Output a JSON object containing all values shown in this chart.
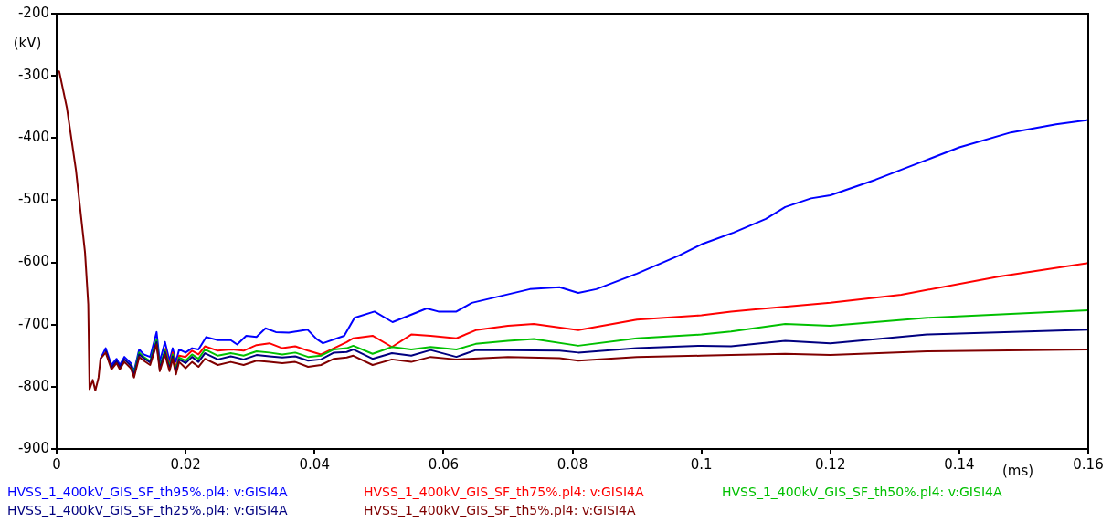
{
  "chart_data": {
    "type": "line",
    "xlabel": "(ms)",
    "ylabel": "(kV)",
    "xlim": [
      0,
      0.16
    ],
    "xticks": [
      0,
      0.02,
      0.04,
      0.06,
      0.08,
      0.1,
      0.12,
      0.14,
      0.16
    ],
    "ylim": [
      -900,
      -200
    ],
    "yticks": [
      -900,
      -800,
      -700,
      -600,
      -500,
      -400,
      -300,
      -200
    ],
    "grid": false,
    "legend": "bottom",
    "marker": "none",
    "line_style": "solid",
    "series": [
      {
        "name": "HVSS_1_400kV_GIS_SF_th95%.pl4: v:GISI4A",
        "color": "#0000ff",
        "x": [
          0.0068,
          0.0076,
          0.0085,
          0.0093,
          0.0098,
          0.0105,
          0.0115,
          0.012,
          0.0128,
          0.0135,
          0.0145,
          0.0155,
          0.016,
          0.0168,
          0.0175,
          0.018,
          0.0185,
          0.019,
          0.02,
          0.021,
          0.022,
          0.0232,
          0.025,
          0.027,
          0.028,
          0.0294,
          0.031,
          0.0324,
          0.034,
          0.036,
          0.0389,
          0.0403,
          0.0413,
          0.0446,
          0.0462,
          0.0493,
          0.0521,
          0.0574,
          0.0592,
          0.062,
          0.0644,
          0.0734,
          0.078,
          0.0809,
          0.0837,
          0.09,
          0.0965,
          0.1,
          0.105,
          0.11,
          0.113,
          0.117,
          0.12,
          0.127,
          0.135,
          0.14,
          0.148,
          0.155,
          0.16
        ],
        "values": [
          -755,
          -738,
          -765,
          -755,
          -765,
          -752,
          -762,
          -775,
          -740,
          -748,
          -752,
          -712,
          -760,
          -728,
          -758,
          -738,
          -760,
          -740,
          -745,
          -738,
          -740,
          -720,
          -725,
          -725,
          -732,
          -718,
          -720,
          -706,
          -712,
          -713,
          -708,
          -723,
          -730,
          -718,
          -689,
          -679,
          -696,
          -674,
          -679,
          -679,
          -665,
          -643,
          -640,
          -649,
          -643,
          -618,
          -589,
          -571,
          -552,
          -530,
          -511,
          -497,
          -492,
          -467,
          -435,
          -415,
          -391,
          -378,
          -371
        ]
      },
      {
        "name": "HVSS_1_400kV_GIS_SF_th75%.pl4: v:GISI4A",
        "color": "#ff0000",
        "x": [
          0.0168,
          0.0175,
          0.018,
          0.0185,
          0.019,
          0.02,
          0.021,
          0.022,
          0.023,
          0.025,
          0.027,
          0.029,
          0.031,
          0.033,
          0.035,
          0.037,
          0.039,
          0.041,
          0.043,
          0.045,
          0.046,
          0.049,
          0.052,
          0.055,
          0.058,
          0.062,
          0.065,
          0.07,
          0.074,
          0.0809,
          0.09,
          0.1,
          0.1046,
          0.108,
          0.12,
          0.131,
          0.146,
          0.16
        ],
        "values": [
          -738,
          -765,
          -745,
          -770,
          -750,
          -752,
          -742,
          -748,
          -735,
          -742,
          -740,
          -742,
          -733,
          -730,
          -738,
          -735,
          -742,
          -748,
          -738,
          -728,
          -722,
          -718,
          -736,
          -716,
          -718,
          -722,
          -709,
          -702,
          -699,
          -709,
          -692,
          -685,
          -679,
          -676,
          -665,
          -652,
          -623,
          -601
        ]
      },
      {
        "name": "HVSS_1_400kV_GIS_SF_th50%.pl4: v:GISI4A",
        "color": "#00c000",
        "x": [
          0.0115,
          0.012,
          0.0128,
          0.0135,
          0.0145,
          0.0155,
          0.016,
          0.0168,
          0.0175,
          0.018,
          0.0185,
          0.019,
          0.02,
          0.021,
          0.022,
          0.023,
          0.025,
          0.027,
          0.029,
          0.031,
          0.033,
          0.035,
          0.037,
          0.039,
          0.041,
          0.043,
          0.045,
          0.046,
          0.049,
          0.052,
          0.055,
          0.058,
          0.062,
          0.065,
          0.07,
          0.074,
          0.0809,
          0.09,
          0.1,
          0.1046,
          0.113,
          0.12,
          0.135,
          0.16
        ],
        "values": [
          -764,
          -778,
          -745,
          -752,
          -759,
          -724,
          -768,
          -741,
          -768,
          -748,
          -773,
          -753,
          -758,
          -748,
          -755,
          -740,
          -750,
          -746,
          -750,
          -743,
          -745,
          -748,
          -745,
          -752,
          -750,
          -740,
          -738,
          -734,
          -747,
          -736,
          -740,
          -736,
          -740,
          -731,
          -726,
          -723,
          -734,
          -722,
          -716,
          -711,
          -699,
          -702,
          -689,
          -677
        ]
      },
      {
        "name": "HVSS_1_400kV_GIS_SF_th25%.pl4: v:GISI4A",
        "color": "#000080",
        "x": [
          0.0076,
          0.0085,
          0.0093,
          0.0098,
          0.0105,
          0.0115,
          0.012,
          0.0128,
          0.0135,
          0.0145,
          0.0155,
          0.016,
          0.0168,
          0.0175,
          0.018,
          0.0185,
          0.019,
          0.02,
          0.021,
          0.022,
          0.023,
          0.025,
          0.027,
          0.029,
          0.031,
          0.033,
          0.035,
          0.037,
          0.039,
          0.041,
          0.043,
          0.045,
          0.046,
          0.049,
          0.052,
          0.055,
          0.058,
          0.062,
          0.065,
          0.07,
          0.078,
          0.0809,
          0.09,
          0.1,
          0.1046,
          0.113,
          0.12,
          0.135,
          0.16
        ],
        "values": [
          -742,
          -769,
          -759,
          -769,
          -756,
          -766,
          -781,
          -748,
          -754,
          -761,
          -728,
          -771,
          -744,
          -771,
          -751,
          -776,
          -756,
          -762,
          -752,
          -760,
          -746,
          -756,
          -751,
          -756,
          -749,
          -751,
          -753,
          -751,
          -758,
          -756,
          -745,
          -744,
          -740,
          -755,
          -746,
          -750,
          -741,
          -752,
          -741,
          -741,
          -742,
          -745,
          -738,
          -734,
          -735,
          -726,
          -730,
          -716,
          -708
        ]
      },
      {
        "name": "HVSS_1_400kV_GIS_SF_th5%.pl4: v:GISI4A",
        "color": "#800000",
        "x": [
          0,
          0.0004,
          0.0016,
          0.003,
          0.0044,
          0.0049,
          0.0051,
          0.0056,
          0.006,
          0.0065,
          0.0068,
          0.0076,
          0.0085,
          0.0093,
          0.0098,
          0.0105,
          0.0115,
          0.012,
          0.0128,
          0.0135,
          0.0145,
          0.0155,
          0.016,
          0.0168,
          0.0175,
          0.018,
          0.0185,
          0.019,
          0.02,
          0.021,
          0.022,
          0.023,
          0.025,
          0.027,
          0.029,
          0.031,
          0.033,
          0.035,
          0.037,
          0.039,
          0.041,
          0.043,
          0.045,
          0.046,
          0.049,
          0.052,
          0.055,
          0.058,
          0.062,
          0.07,
          0.078,
          0.0809,
          0.09,
          0.1,
          0.1046,
          0.113,
          0.12,
          0.135,
          0.16
        ],
        "values": [
          -293,
          -293,
          -352,
          -452,
          -584,
          -667,
          -804,
          -789,
          -806,
          -785,
          -755,
          -745,
          -772,
          -762,
          -772,
          -760,
          -770,
          -785,
          -752,
          -758,
          -765,
          -732,
          -775,
          -748,
          -775,
          -755,
          -780,
          -760,
          -770,
          -760,
          -768,
          -755,
          -765,
          -760,
          -765,
          -758,
          -760,
          -762,
          -760,
          -768,
          -765,
          -755,
          -753,
          -750,
          -765,
          -756,
          -760,
          -752,
          -756,
          -752,
          -754,
          -758,
          -752,
          -750,
          -749,
          -747,
          -749,
          -743,
          -740
        ]
      }
    ]
  }
}
